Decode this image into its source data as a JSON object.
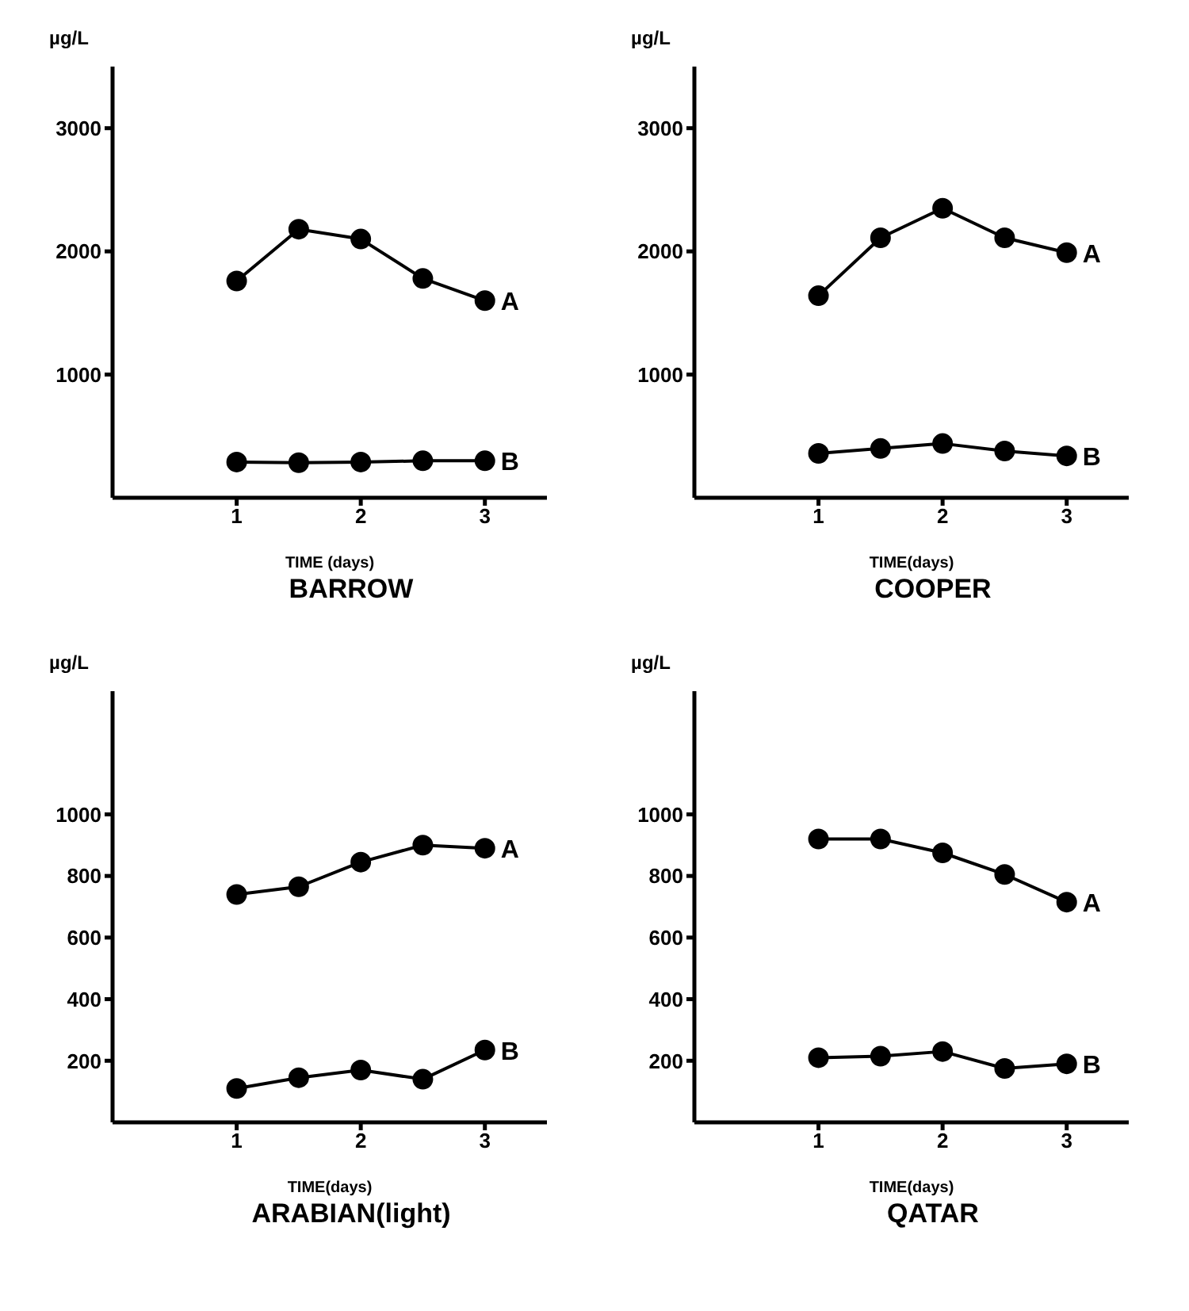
{
  "chart_data": [
    {
      "type": "line",
      "title": "BARROW",
      "xlabel": "TIME (days)",
      "ylabel": "µg/L",
      "x": [
        1,
        1.5,
        2,
        2.5,
        3
      ],
      "xlim": [
        0,
        3.5
      ],
      "xticks": [
        1,
        2,
        3
      ],
      "ylim": [
        0,
        3500
      ],
      "yticks": [
        1000,
        2000,
        3000
      ],
      "marker": "circle",
      "line_style": "solid",
      "grid": false,
      "series": [
        {
          "name": "A",
          "color": "#000000",
          "values": [
            1760,
            2180,
            2100,
            1780,
            1600
          ]
        },
        {
          "name": "B",
          "color": "#000000",
          "values": [
            290,
            285,
            290,
            300,
            300
          ]
        }
      ]
    },
    {
      "type": "line",
      "title": "COOPER",
      "xlabel": "TIME(days)",
      "ylabel": "µg/L",
      "x": [
        1,
        1.5,
        2,
        2.5,
        3
      ],
      "xlim": [
        0,
        3.5
      ],
      "xticks": [
        1,
        2,
        3
      ],
      "ylim": [
        0,
        3500
      ],
      "yticks": [
        1000,
        2000,
        3000
      ],
      "marker": "circle",
      "line_style": "solid",
      "grid": false,
      "series": [
        {
          "name": "A",
          "color": "#000000",
          "values": [
            1640,
            2110,
            2350,
            2110,
            1990
          ]
        },
        {
          "name": "B",
          "color": "#000000",
          "values": [
            360,
            400,
            440,
            380,
            340
          ]
        }
      ]
    },
    {
      "type": "line",
      "title": "ARABIAN(light)",
      "xlabel": "TIME(days)",
      "ylabel": "µg/L",
      "x": [
        1,
        1.5,
        2,
        2.5,
        3
      ],
      "xlim": [
        0,
        3.5
      ],
      "xticks": [
        1,
        2,
        3
      ],
      "ylim": [
        0,
        1400
      ],
      "yticks": [
        200,
        400,
        600,
        800,
        1000
      ],
      "marker": "circle",
      "line_style": "solid",
      "grid": false,
      "series": [
        {
          "name": "A",
          "color": "#000000",
          "values": [
            740,
            765,
            845,
            900,
            890
          ]
        },
        {
          "name": "B",
          "color": "#000000",
          "values": [
            110,
            145,
            170,
            140,
            235
          ]
        }
      ]
    },
    {
      "type": "line",
      "title": "QATAR",
      "xlabel": "TIME(days)",
      "ylabel": "µg/L",
      "x": [
        1,
        1.5,
        2,
        2.5,
        3
      ],
      "xlim": [
        0,
        3.5
      ],
      "xticks": [
        1,
        2,
        3
      ],
      "ylim": [
        0,
        1400
      ],
      "yticks": [
        200,
        400,
        600,
        800,
        1000
      ],
      "marker": "circle",
      "line_style": "solid",
      "grid": false,
      "series": [
        {
          "name": "A",
          "color": "#000000",
          "values": [
            920,
            920,
            875,
            805,
            715
          ]
        },
        {
          "name": "B",
          "color": "#000000",
          "values": [
            210,
            215,
            230,
            175,
            190
          ]
        }
      ]
    }
  ]
}
